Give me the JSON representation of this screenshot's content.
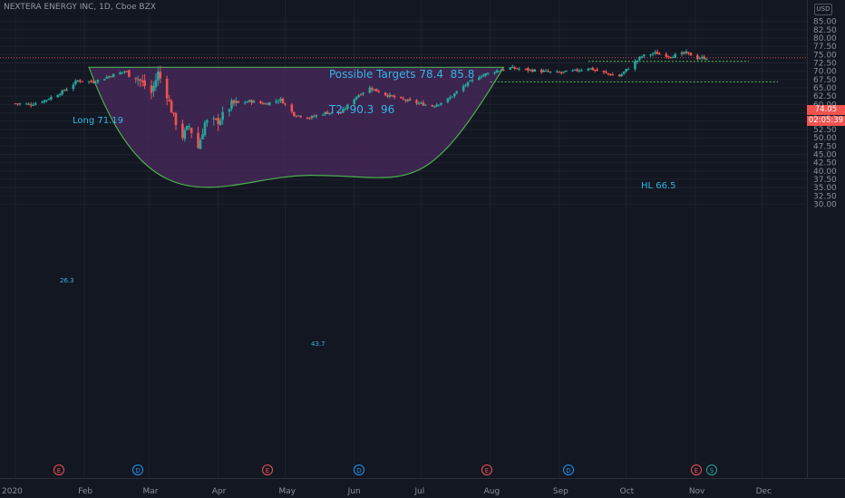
{
  "header": {
    "symbol_line": "NEXTERA ENERGY INC, 1D, Cboe BZX",
    "currency": "USD"
  },
  "price_labels": {
    "last": "74.05",
    "countdown": "02:05:39"
  },
  "annotations": {
    "targets_line1": "Possible Targets 78.4  85.8",
    "targets_line2": "T2  90.3  96",
    "long": "Long 71.19",
    "hl": "HL 66.5",
    "depth_left": "26.3",
    "depth_mid": "43.7"
  },
  "events": [
    {
      "label": "E",
      "kind": "earnings"
    },
    {
      "label": "D",
      "kind": "dividend"
    },
    {
      "label": "E",
      "kind": "earnings"
    },
    {
      "label": "D",
      "kind": "dividend"
    },
    {
      "label": "E",
      "kind": "earnings"
    },
    {
      "label": "D",
      "kind": "dividend"
    },
    {
      "label": "E",
      "kind": "earnings"
    },
    {
      "label": "S",
      "kind": "split"
    }
  ],
  "colors": {
    "background": "#131722",
    "up": "#26a69a",
    "down": "#ef5350",
    "pattern_fill": "#4a2a5c",
    "pattern_stroke": "#4caf50",
    "level_line": "#4caf50",
    "annotation": "#33b5e5",
    "event_earnings": "#ef5350",
    "event_dividend": "#2196f3",
    "event_split": "#26a69a"
  },
  "chart_data": {
    "type": "candlestick",
    "title": "NEXTERA ENERGY INC, 1D, Cboe BZX",
    "x_ticks": [
      "2020",
      "Feb",
      "Mar",
      "Apr",
      "May",
      "Jun",
      "Jul",
      "Aug",
      "Sep",
      "Oct",
      "Nov",
      "Dec"
    ],
    "y_ticks": [
      "85.00",
      "82.50",
      "80.00",
      "77.50",
      "75.00",
      "72.50",
      "70.00",
      "67.50",
      "65.00",
      "62.50",
      "60.00",
      "57.50",
      "55.00",
      "52.50",
      "50.00",
      "47.50",
      "45.00",
      "42.50",
      "40.00",
      "37.50",
      "35.00",
      "32.50",
      "30.00"
    ],
    "ylim": [
      30,
      86
    ],
    "x_domain": [
      "2020-01-01",
      "2020-12-15"
    ],
    "last_price": 74.05,
    "levels": [
      {
        "name": "Long",
        "value": 71.19
      },
      {
        "name": "HL",
        "value": 66.5
      },
      {
        "name": "Resistance",
        "value": 73.0
      }
    ],
    "cup_bottom": 38.7,
    "targets": [
      78.4,
      85.8,
      90.3,
      96
    ],
    "closes_anchor": [
      [
        "2020-01-01",
        60.3
      ],
      [
        "2020-01-08",
        60.0
      ],
      [
        "2020-01-15",
        61.5
      ],
      [
        "2020-01-22",
        63.8
      ],
      [
        "2020-01-29",
        67.2
      ],
      [
        "2020-02-05",
        66.8
      ],
      [
        "2020-02-12",
        68.5
      ],
      [
        "2020-02-19",
        70.0
      ],
      [
        "2020-02-24",
        68.5
      ],
      [
        "2020-03-02",
        63.5
      ],
      [
        "2020-03-05",
        69.5
      ],
      [
        "2020-03-09",
        63.0
      ],
      [
        "2020-03-12",
        56.0
      ],
      [
        "2020-03-16",
        50.5
      ],
      [
        "2020-03-19",
        53.5
      ],
      [
        "2020-03-23",
        47.0
      ],
      [
        "2020-03-26",
        54.5
      ],
      [
        "2020-04-01",
        55.0
      ],
      [
        "2020-04-07",
        60.0
      ],
      [
        "2020-04-15",
        61.0
      ],
      [
        "2020-04-22",
        60.2
      ],
      [
        "2020-04-29",
        61.5
      ],
      [
        "2020-05-05",
        57.0
      ],
      [
        "2020-05-12",
        56.0
      ],
      [
        "2020-05-19",
        57.5
      ],
      [
        "2020-05-26",
        57.5
      ],
      [
        "2020-06-02",
        62.5
      ],
      [
        "2020-06-08",
        65.0
      ],
      [
        "2020-06-15",
        63.0
      ],
      [
        "2020-06-22",
        61.5
      ],
      [
        "2020-06-29",
        60.5
      ],
      [
        "2020-07-06",
        59.5
      ],
      [
        "2020-07-13",
        61.5
      ],
      [
        "2020-07-20",
        65.5
      ],
      [
        "2020-07-27",
        68.5
      ],
      [
        "2020-08-03",
        70.0
      ],
      [
        "2020-08-10",
        71.0
      ],
      [
        "2020-08-17",
        70.5
      ],
      [
        "2020-08-24",
        70.0
      ],
      [
        "2020-08-31",
        69.5
      ],
      [
        "2020-09-07",
        70.0
      ],
      [
        "2020-09-14",
        71.0
      ],
      [
        "2020-09-21",
        69.5
      ],
      [
        "2020-09-28",
        68.5
      ],
      [
        "2020-10-02",
        71.0
      ],
      [
        "2020-10-08",
        74.5
      ],
      [
        "2020-10-14",
        75.5
      ],
      [
        "2020-10-21",
        74.5
      ],
      [
        "2020-10-28",
        75.5
      ],
      [
        "2020-11-02",
        74.0
      ],
      [
        "2020-11-06",
        74.05
      ]
    ]
  }
}
